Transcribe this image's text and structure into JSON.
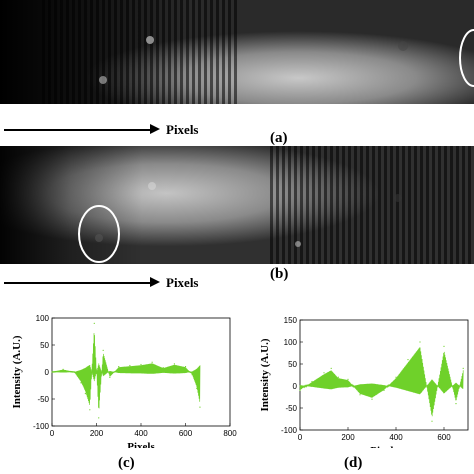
{
  "panels": {
    "a": {
      "letter": "(a)",
      "arrow_label": "Pixels"
    },
    "b": {
      "letter": "(b)",
      "arrow_label": "Pixels"
    },
    "c": {
      "letter": "(c)"
    },
    "d": {
      "letter": "(d)"
    }
  },
  "chart_data": [
    {
      "type": "line",
      "panel": "(c)",
      "title": "",
      "xlabel": "Pixels",
      "ylabel": "Intensity (A.U.)",
      "xlim": [
        0,
        800
      ],
      "ylim": [
        -100,
        100
      ],
      "xticks": [
        "0",
        "200",
        "400",
        "600",
        "800"
      ],
      "yticks": [
        "100",
        "50",
        "0",
        "-50",
        "-100"
      ],
      "line_color": "#6fd12a",
      "series": [
        {
          "x": [
            0,
            50,
            100,
            130,
            150,
            170,
            190,
            210,
            230,
            260,
            300,
            350,
            400,
            450,
            500,
            550,
            600,
            630,
            650,
            665
          ],
          "y": [
            0,
            5,
            0,
            -20,
            -40,
            -70,
            90,
            -85,
            40,
            -10,
            10,
            12,
            14,
            18,
            8,
            15,
            10,
            -5,
            -30,
            -65
          ]
        }
      ]
    },
    {
      "type": "line",
      "panel": "(d)",
      "title": "",
      "xlabel": "Pixels",
      "ylabel": "Intensity (A.U.)",
      "xlim": [
        0,
        700
      ],
      "ylim": [
        -100,
        150
      ],
      "xticks": [
        "0",
        "200",
        "400",
        "600"
      ],
      "yticks": [
        "150",
        "100",
        "50",
        "0",
        "-50",
        "-100"
      ],
      "line_color": "#6fd12a",
      "series": [
        {
          "x": [
            0,
            50,
            100,
            130,
            160,
            200,
            250,
            300,
            350,
            400,
            450,
            500,
            550,
            600,
            650,
            680
          ],
          "y": [
            -10,
            10,
            30,
            40,
            20,
            15,
            -20,
            -30,
            -10,
            20,
            60,
            100,
            -80,
            90,
            -40,
            40
          ]
        }
      ]
    }
  ]
}
